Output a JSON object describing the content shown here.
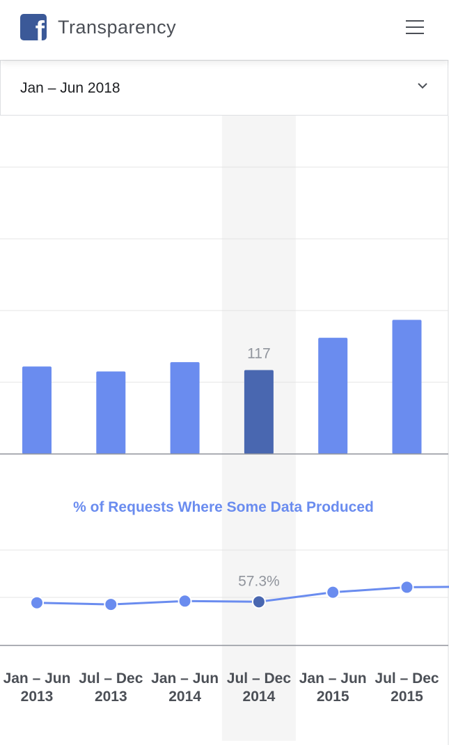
{
  "header": {
    "logo_glyph": "f",
    "title": "Transparency",
    "menu_icon": "hamburger-icon"
  },
  "period_selector": {
    "selected": "Jan – Jun 2018",
    "icon": "chevron-down-icon"
  },
  "colors": {
    "bar": "#6a8cef",
    "bar_highlight": "#4967b0",
    "line": "#6a8cef",
    "highlight_band": "#f5f5f5",
    "section_title": "#6a8cef"
  },
  "chart_data": [
    {
      "type": "bar",
      "categories": [
        "Jan – Jun 2013",
        "Jul – Dec 2013",
        "Jan – Jun 2014",
        "Jul – Dec 2014",
        "Jan – Jun 2015",
        "Jul – Dec 2015"
      ],
      "values": [
        122,
        115,
        128,
        117,
        162,
        187
      ],
      "highlighted_index": 3,
      "highlight_label": "117",
      "ylim": [
        0,
        400
      ],
      "grid": true
    },
    {
      "type": "line",
      "title": "% of Requests Where Some Data Produced",
      "categories": [
        "Jan – Jun 2013",
        "Jul – Dec 2013",
        "Jan – Jun 2014",
        "Jul – Dec 2014",
        "Jan – Jun 2015",
        "Jul – Dec 2015"
      ],
      "values": [
        56.9,
        56.2,
        57.6,
        57.3,
        61.3,
        63.4
      ],
      "highlighted_index": 3,
      "highlight_label": "57.3%",
      "ylim": [
        39,
        79
      ]
    }
  ],
  "x_axis": {
    "labels": [
      {
        "line1": "Jan – Jun",
        "line2": "2013"
      },
      {
        "line1": "Jul – Dec",
        "line2": "2013"
      },
      {
        "line1": "Jan – Jun",
        "line2": "2014"
      },
      {
        "line1": "Jul – Dec",
        "line2": "2014"
      },
      {
        "line1": "Jan – Jun",
        "line2": "2015"
      },
      {
        "line1": "Jul – Dec",
        "line2": "2015"
      }
    ]
  }
}
